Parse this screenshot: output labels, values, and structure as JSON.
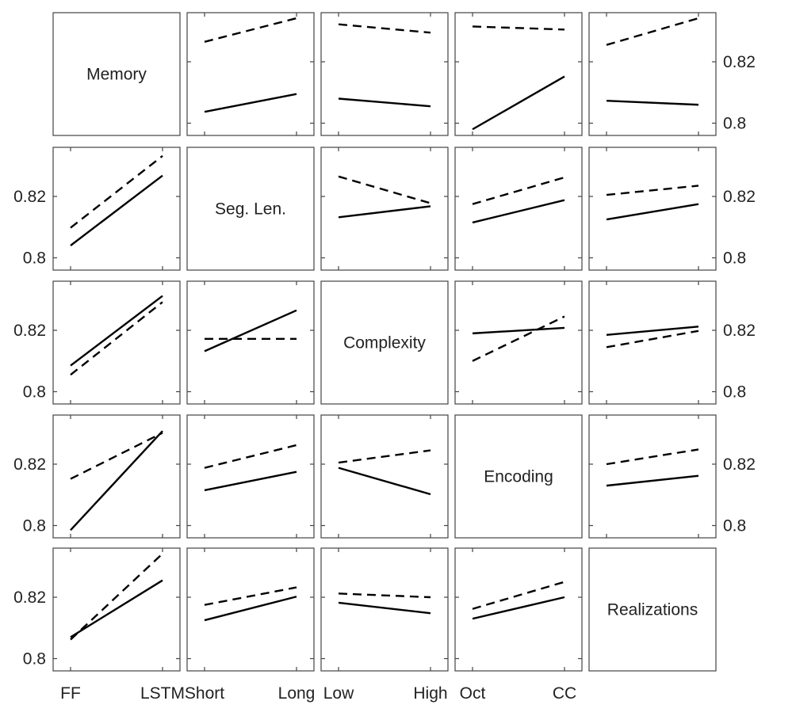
{
  "chart_data": {
    "type": "line",
    "rows": 5,
    "cols": 5,
    "factors": [
      "Memory",
      "Seg. Len.",
      "Complexity",
      "Encoding",
      "Realizations"
    ],
    "x_levels": [
      [
        "FF",
        "LSTM"
      ],
      [
        "Short",
        "Long"
      ],
      [
        "Low",
        "High"
      ],
      [
        "Oct",
        "CC"
      ],
      []
    ],
    "ylim": [
      0.796,
      0.836
    ],
    "yticks": [
      0.8,
      0.82
    ],
    "ytick_labels": [
      "0.8",
      "0.82"
    ],
    "line_styles": [
      "solid",
      "dashed"
    ],
    "line_color": "#000000",
    "panels": [
      {
        "row": 0,
        "col": 1,
        "solid": [
          0.8037,
          0.8095
        ],
        "dashed": [
          0.8265,
          0.8342
        ]
      },
      {
        "row": 0,
        "col": 2,
        "solid": [
          0.808,
          0.8055
        ],
        "dashed": [
          0.8322,
          0.8295
        ]
      },
      {
        "row": 0,
        "col": 3,
        "solid": [
          0.798,
          0.8152
        ],
        "dashed": [
          0.8315,
          0.8305
        ]
      },
      {
        "row": 0,
        "col": 4,
        "solid": [
          0.8073,
          0.806
        ],
        "dashed": [
          0.8255,
          0.8342
        ]
      },
      {
        "row": 1,
        "col": 0,
        "solid": [
          0.804,
          0.8268
        ],
        "dashed": [
          0.8098,
          0.8332
        ]
      },
      {
        "row": 1,
        "col": 2,
        "solid": [
          0.8132,
          0.8168
        ],
        "dashed": [
          0.8265,
          0.8178
        ]
      },
      {
        "row": 1,
        "col": 3,
        "solid": [
          0.8115,
          0.8188
        ],
        "dashed": [
          0.8175,
          0.8262
        ]
      },
      {
        "row": 1,
        "col": 4,
        "solid": [
          0.8125,
          0.8175
        ],
        "dashed": [
          0.8205,
          0.8235
        ]
      },
      {
        "row": 2,
        "col": 0,
        "solid": [
          0.8085,
          0.8312
        ],
        "dashed": [
          0.8055,
          0.8292
        ]
      },
      {
        "row": 2,
        "col": 1,
        "solid": [
          0.8132,
          0.8265
        ],
        "dashed": [
          0.8172,
          0.8172
        ]
      },
      {
        "row": 2,
        "col": 3,
        "solid": [
          0.819,
          0.8208
        ],
        "dashed": [
          0.81,
          0.8245
        ]
      },
      {
        "row": 2,
        "col": 4,
        "solid": [
          0.8185,
          0.8212
        ],
        "dashed": [
          0.8145,
          0.8198
        ]
      },
      {
        "row": 3,
        "col": 0,
        "solid": [
          0.7985,
          0.8308
        ],
        "dashed": [
          0.8152,
          0.8302
        ]
      },
      {
        "row": 3,
        "col": 1,
        "solid": [
          0.8115,
          0.8175
        ],
        "dashed": [
          0.8188,
          0.8262
        ]
      },
      {
        "row": 3,
        "col": 2,
        "solid": [
          0.8188,
          0.8102
        ],
        "dashed": [
          0.8205,
          0.8245
        ]
      },
      {
        "row": 3,
        "col": 4,
        "solid": [
          0.813,
          0.8162
        ],
        "dashed": [
          0.82,
          0.8248
        ]
      },
      {
        "row": 4,
        "col": 0,
        "solid": [
          0.807,
          0.8255
        ],
        "dashed": [
          0.8062,
          0.8342
        ]
      },
      {
        "row": 4,
        "col": 1,
        "solid": [
          0.8125,
          0.8202
        ],
        "dashed": [
          0.8175,
          0.8232
        ]
      },
      {
        "row": 4,
        "col": 2,
        "solid": [
          0.8182,
          0.8148
        ],
        "dashed": [
          0.8212,
          0.82
        ]
      },
      {
        "row": 4,
        "col": 3,
        "solid": [
          0.813,
          0.82
        ],
        "dashed": [
          0.8162,
          0.825
        ]
      }
    ]
  }
}
